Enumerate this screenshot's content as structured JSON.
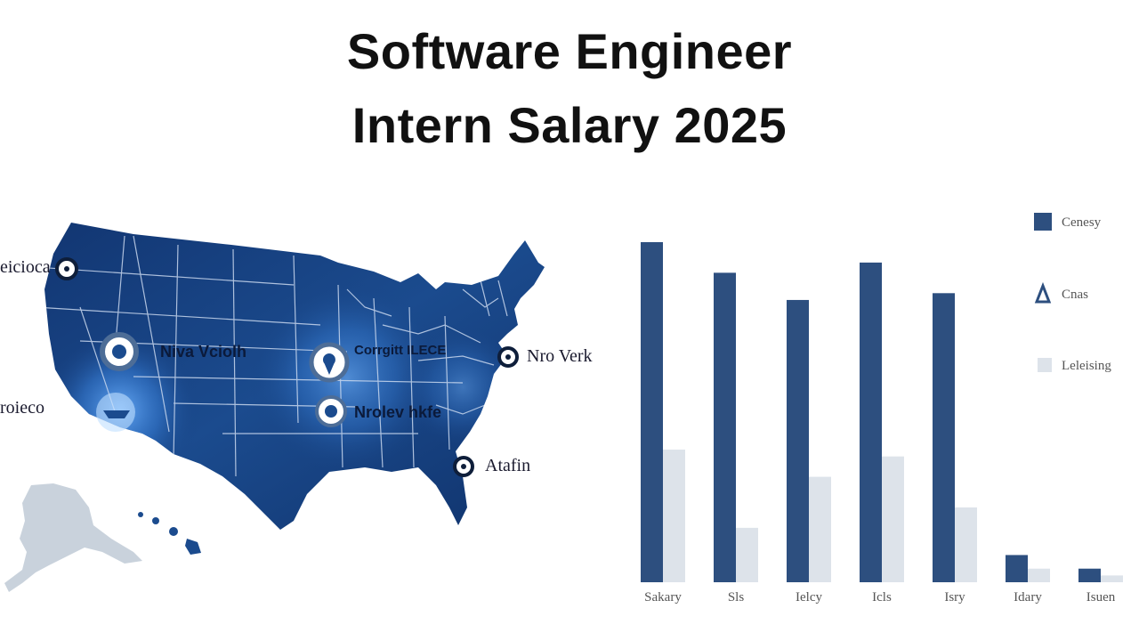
{
  "title_line1": "Software Engineer",
  "title_line2": "Intern Salary 2025",
  "map": {
    "cities": [
      {
        "label": "eicioca"
      },
      {
        "label": "Niva Vciolh"
      },
      {
        "label": "Corrgitt ILECE"
      },
      {
        "label": "Nro Verk"
      },
      {
        "label": "roieco"
      },
      {
        "label": "Nrolev hkfe"
      },
      {
        "label": "Atafin"
      }
    ]
  },
  "colors": {
    "primary": "#2d4f7f",
    "secondary": "#dde3ea",
    "map_fill": "#143b7a",
    "map_glow": "#3f8be8",
    "alaska": "#c9d2dc"
  },
  "chart_data": {
    "type": "bar",
    "categories": [
      "Sakary",
      "Sls",
      "Ielcy",
      "Icls",
      "Isry",
      "Idary",
      "Isuen"
    ],
    "series": [
      {
        "name": "Cenesy",
        "values": [
          100,
          91,
          83,
          94,
          85,
          8,
          4
        ]
      },
      {
        "name": "Leleising",
        "values": [
          39,
          16,
          31,
          37,
          22,
          4,
          2
        ]
      }
    ],
    "legend": [
      "Cenesy",
      "Cnas",
      "Leleising"
    ],
    "ylim": [
      0,
      100
    ],
    "grid": false,
    "legend_position": "right"
  }
}
